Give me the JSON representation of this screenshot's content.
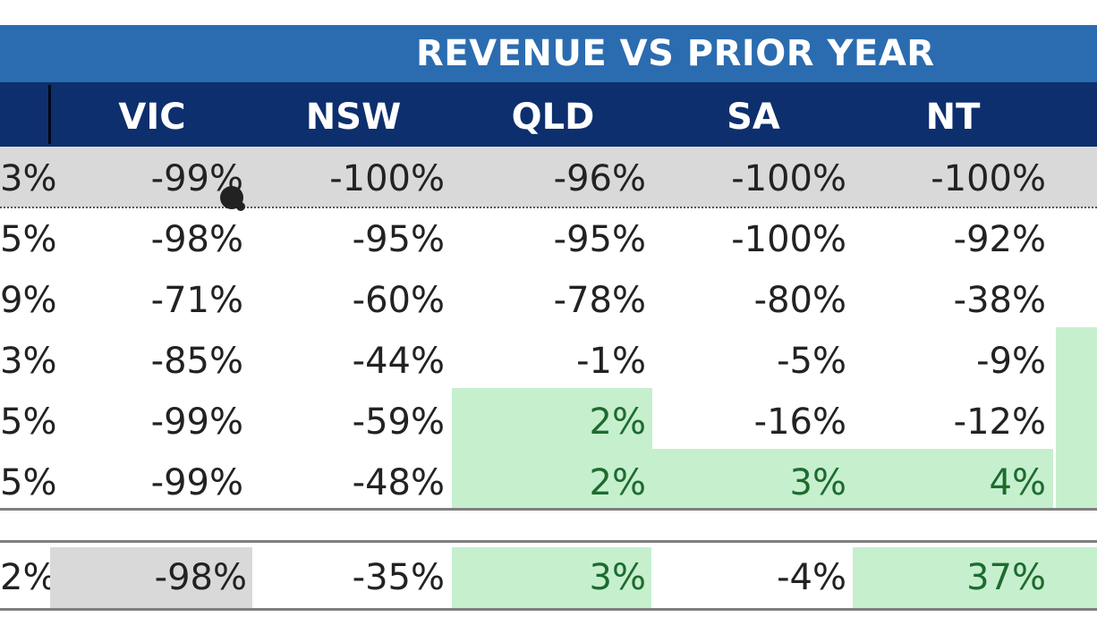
{
  "table": {
    "banner": "REVENUE VS PRIOR YEAR",
    "columns": [
      "VIC",
      "NSW",
      "QLD",
      "SA",
      "NT"
    ],
    "rows": [
      {
        "cut": "3%",
        "values": [
          "-99%",
          "-100%",
          "-96%",
          "-100%",
          "-100%"
        ]
      },
      {
        "cut": "5%",
        "values": [
          "-98%",
          "-95%",
          "-95%",
          "-100%",
          "-92%"
        ]
      },
      {
        "cut": "9%",
        "values": [
          "-71%",
          "-60%",
          "-78%",
          "-80%",
          "-38%"
        ]
      },
      {
        "cut": "3%",
        "values": [
          "-85%",
          "-44%",
          "-1%",
          "-5%",
          "-9%"
        ]
      },
      {
        "cut": "5%",
        "values": [
          "-99%",
          "-59%",
          "2%",
          "-16%",
          "-12%"
        ]
      },
      {
        "cut": "5%",
        "values": [
          "-99%",
          "-48%",
          "2%",
          "3%",
          "4%"
        ]
      }
    ],
    "total": {
      "cut": "2%",
      "values": [
        "-98%",
        "-35%",
        "3%",
        "-4%",
        "37%"
      ]
    }
  },
  "colors": {
    "banner_bg": "#2b6cb0",
    "header_bg": "#0d2f6d",
    "positive_fill": "#c6efce",
    "positive_text": "#1d6b2f",
    "highlight_row": "#d9d9d9"
  }
}
